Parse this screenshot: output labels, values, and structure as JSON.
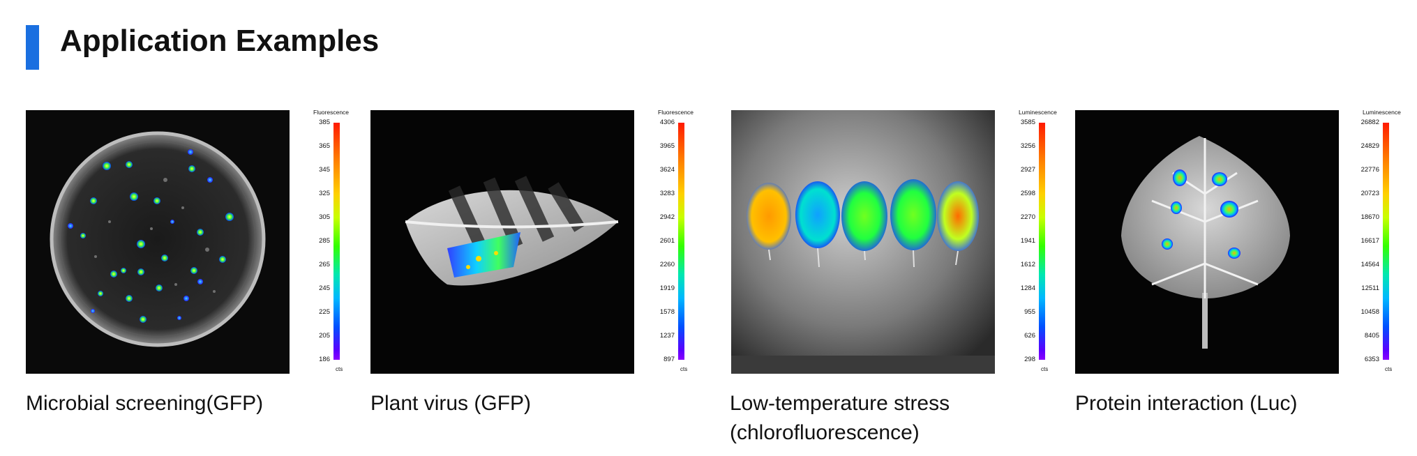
{
  "header": {
    "title": "Application Examples"
  },
  "panels": [
    {
      "caption": "Microbial screening(GFP)",
      "scale": {
        "title": "Fluorescence",
        "ticks": [
          "385",
          "365",
          "345",
          "325",
          "305",
          "285",
          "265",
          "245",
          "225",
          "205",
          "186"
        ],
        "unit": "cts"
      }
    },
    {
      "caption": "Plant virus (GFP)",
      "scale": {
        "title": "Fluorescence",
        "ticks": [
          "4306",
          "3965",
          "3624",
          "3283",
          "2942",
          "2601",
          "2260",
          "1919",
          "1578",
          "1237",
          "897"
        ],
        "unit": "cts"
      }
    },
    {
      "caption_line1": "Low-temperature stress",
      "caption_line2": "(chlorofluorescence)",
      "scale": {
        "title": "Luminescence",
        "ticks": [
          "3585",
          "3256",
          "2927",
          "2598",
          "2270",
          "1941",
          "1612",
          "1284",
          "955",
          "626",
          "298"
        ],
        "unit": "cts"
      }
    },
    {
      "caption": "Protein interaction (Luc)",
      "scale": {
        "title": "Luminescence",
        "ticks": [
          "26882",
          "24829",
          "22776",
          "20723",
          "18670",
          "16617",
          "14564",
          "12511",
          "10458",
          "8405",
          "6353"
        ],
        "unit": "cts"
      }
    }
  ],
  "colors": {
    "accent": "#1a6fe0"
  }
}
